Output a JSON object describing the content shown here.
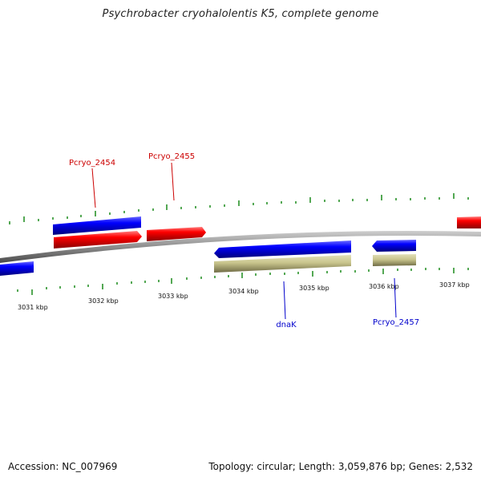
{
  "title": "Psychrobacter cryohalolentis K5, complete genome",
  "footer": {
    "accession": "Accession: NC_007969",
    "summary": "Topology: circular; Length: 3,059,876 bp; Genes: 2,532"
  },
  "colors": {
    "backbone": "#8c8c8c",
    "forward_gene": "#ff0000",
    "reverse_gene": "#0000ff",
    "other_gene": "#c8c48c",
    "tick": "#1a8a1a",
    "forward_label": "#cc0000",
    "reverse_label": "#0000cc"
  },
  "scale_labels": [
    "3031 kbp",
    "3032 kbp",
    "3033 kbp",
    "3034 kbp",
    "3035 kbp",
    "3036 kbp",
    "3037 kbp"
  ],
  "gene_labels": [
    {
      "text": "Pcryo_2454",
      "strand": "forward"
    },
    {
      "text": "Pcryo_2455",
      "strand": "forward"
    },
    {
      "text": "dnaK",
      "strand": "reverse"
    },
    {
      "text": "Pcryo_2457",
      "strand": "reverse"
    }
  ]
}
